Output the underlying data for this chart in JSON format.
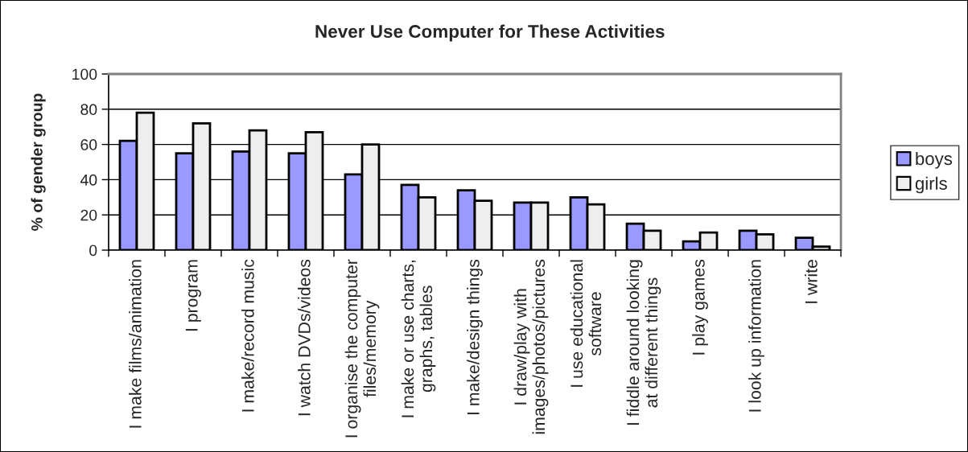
{
  "chart_data": {
    "type": "bar",
    "title": "Never Use Computer for These Activities",
    "ylabel": "% of gender group",
    "categories": [
      "I make films/animation",
      "I program",
      "I make/record music",
      "I watch DVDs/videos",
      "I organise the computer\nfiles/memory",
      "I make or use charts,\ngraphs, tables",
      "I make/design things",
      "I draw/play with\nimages/photos/pictures",
      "I use educational\nsoftware",
      "I fiddle around looking\nat different things",
      "I play games",
      "I look up information",
      "I write"
    ],
    "series": [
      {
        "name": "boys",
        "color": "#9999ff",
        "values": [
          62,
          55,
          56,
          55,
          43,
          37,
          34,
          27,
          30,
          15,
          5,
          11,
          7
        ]
      },
      {
        "name": "girls",
        "color": "#eeeeee",
        "values": [
          78,
          72,
          68,
          67,
          60,
          30,
          28,
          27,
          26,
          11,
          10,
          9,
          2
        ]
      }
    ],
    "ylim": [
      0,
      100
    ],
    "yticks": [
      0,
      20,
      40,
      60,
      80,
      100
    ],
    "grid": "y",
    "legend": "right"
  }
}
